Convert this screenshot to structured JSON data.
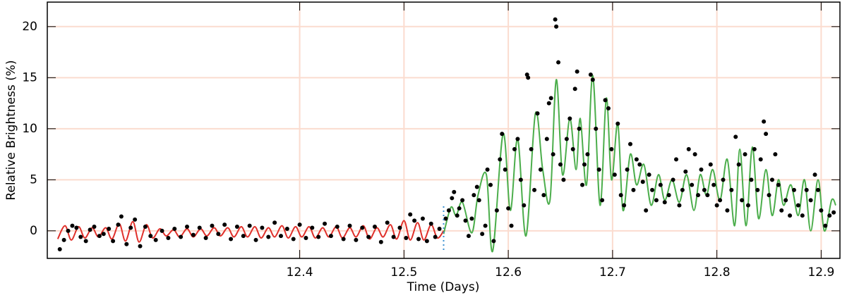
{
  "chart_data": {
    "type": "scatter",
    "xlabel": "Time (Days)",
    "ylabel": "Relative Brightness (%)",
    "xlim": [
      12.158,
      12.918
    ],
    "ylim": [
      -2.7,
      22.4
    ],
    "xticks": [
      12.4,
      12.5,
      12.6,
      12.7,
      12.8,
      12.9
    ],
    "yticks": [
      0,
      5,
      10,
      15,
      20
    ],
    "grid": true,
    "grid_color": "#fbdccf",
    "vline": {
      "x": 12.538,
      "color": "#3a8fd0"
    },
    "series": [
      {
        "type": "line",
        "color": "#e0302a",
        "x": [
          12.168,
          12.175,
          12.181,
          12.188,
          12.194,
          12.201,
          12.207,
          12.214,
          12.22,
          12.227,
          12.233,
          12.24,
          12.246,
          12.253,
          12.259,
          12.266,
          12.272,
          12.279,
          12.285,
          12.292,
          12.298,
          12.305,
          12.311,
          12.318,
          12.324,
          12.331,
          12.337,
          12.344,
          12.35,
          12.357,
          12.363,
          12.37,
          12.376,
          12.383,
          12.389,
          12.396,
          12.402,
          12.409,
          12.415,
          12.422,
          12.428,
          12.435,
          12.441,
          12.448,
          12.454,
          12.461,
          12.467,
          12.474,
          12.48,
          12.487,
          12.493,
          12.5,
          12.506,
          12.513,
          12.519,
          12.526,
          12.532,
          12.538
        ],
        "values": [
          -0.8,
          0.5,
          -0.9,
          0.4,
          -0.7,
          0.3,
          -0.6,
          0.3,
          -0.8,
          0.7,
          -1.0,
          0.9,
          -1.1,
          0.6,
          -0.7,
          0.2,
          -0.5,
          0.1,
          -0.6,
          0.2,
          -0.6,
          0.2,
          -0.5,
          0.3,
          -0.5,
          0.3,
          -0.6,
          0.4,
          -0.6,
          0.4,
          -0.7,
          0.3,
          -0.6,
          0.5,
          -0.7,
          0.4,
          -0.6,
          0.4,
          -0.7,
          0.3,
          -0.6,
          0.4,
          -0.7,
          0.3,
          -0.6,
          0.5,
          -0.8,
          0.3,
          -0.6,
          0.6,
          -0.8,
          1.0,
          -0.9,
          0.8,
          -0.9,
          0.6,
          -0.7,
          0.0
        ]
      },
      {
        "type": "line",
        "color": "#4cae4c",
        "x": [
          12.538,
          12.545,
          12.55,
          12.556,
          12.565,
          12.571,
          12.579,
          12.585,
          12.595,
          12.602,
          12.609,
          12.617,
          12.626,
          12.633,
          12.64,
          12.646,
          12.652,
          12.659,
          12.665,
          12.669,
          12.675,
          12.681,
          12.688,
          12.694,
          12.699,
          12.705,
          12.71,
          12.717,
          12.723,
          12.73,
          12.737,
          12.744,
          12.75,
          12.757,
          12.764,
          12.771,
          12.778,
          12.784,
          12.79,
          12.796,
          12.803,
          12.81,
          12.817,
          12.822,
          12.828,
          12.834,
          12.84,
          12.847,
          12.853,
          12.859,
          12.864,
          12.871,
          12.878,
          12.884,
          12.89,
          12.897,
          12.903,
          12.91,
          12.914
        ],
        "values": [
          -0.3,
          2.3,
          1.5,
          2.8,
          -0.2,
          3.5,
          5.5,
          -2.0,
          9.5,
          2.0,
          9.0,
          -0.5,
          11.5,
          6.0,
          3.0,
          14.8,
          5.5,
          11.0,
          6.0,
          11.0,
          4.5,
          15.2,
          2.5,
          13.0,
          5.0,
          10.5,
          2.0,
          7.5,
          4.5,
          6.5,
          2.5,
          5.5,
          3.0,
          5.0,
          2.8,
          5.5,
          2.0,
          5.5,
          3.5,
          6.0,
          3.0,
          7.0,
          0.5,
          8.0,
          0.5,
          8.2,
          1.2,
          6.0,
          1.5,
          5.0,
          2.5,
          4.5,
          1.5,
          5.0,
          0.0,
          5.0,
          0.0,
          3.0,
          2.5
        ]
      },
      {
        "type": "scatter",
        "color": "#000000",
        "x": [
          12.17,
          12.174,
          12.178,
          12.182,
          12.186,
          12.19,
          12.195,
          12.199,
          12.203,
          12.208,
          12.212,
          12.217,
          12.221,
          12.226,
          12.229,
          12.234,
          12.238,
          12.242,
          12.247,
          12.252,
          12.257,
          12.262,
          12.268,
          12.274,
          12.28,
          12.286,
          12.292,
          12.298,
          12.304,
          12.31,
          12.316,
          12.322,
          12.328,
          12.334,
          12.34,
          12.346,
          12.352,
          12.358,
          12.364,
          12.37,
          12.376,
          12.382,
          12.388,
          12.394,
          12.4,
          12.406,
          12.412,
          12.418,
          12.424,
          12.43,
          12.436,
          12.442,
          12.448,
          12.454,
          12.46,
          12.466,
          12.472,
          12.478,
          12.484,
          12.49,
          12.496,
          12.502,
          12.506,
          12.51,
          12.514,
          12.518,
          12.522,
          12.526,
          12.53,
          12.534,
          12.54,
          12.543,
          12.546,
          12.548,
          12.551,
          12.553,
          12.556,
          12.559,
          12.562,
          12.565,
          12.567,
          12.57,
          12.572,
          12.575,
          12.578,
          12.58,
          12.583,
          12.586,
          12.589,
          12.592,
          12.594,
          12.597,
          12.6,
          12.603,
          12.606,
          12.609,
          12.612,
          12.615,
          12.618,
          12.619,
          12.622,
          12.625,
          12.628,
          12.631,
          12.634,
          12.637,
          12.639,
          12.641,
          12.643,
          12.645,
          12.646,
          12.648,
          12.65,
          12.653,
          12.656,
          12.659,
          12.662,
          12.664,
          12.666,
          12.668,
          12.671,
          12.673,
          12.676,
          12.679,
          12.681,
          12.684,
          12.687,
          12.69,
          12.693,
          12.696,
          12.699,
          12.702,
          12.705,
          12.708,
          12.711,
          12.714,
          12.717,
          12.72,
          12.723,
          12.726,
          12.729,
          12.732,
          12.735,
          12.738,
          12.742,
          12.746,
          12.75,
          12.754,
          12.758,
          12.761,
          12.764,
          12.767,
          12.77,
          12.773,
          12.776,
          12.779,
          12.782,
          12.785,
          12.788,
          12.791,
          12.794,
          12.797,
          12.8,
          12.803,
          12.806,
          12.81,
          12.814,
          12.818,
          12.821,
          12.824,
          12.827,
          12.83,
          12.833,
          12.836,
          12.839,
          12.842,
          12.845,
          12.847,
          12.85,
          12.853,
          12.856,
          12.859,
          12.862,
          12.866,
          12.87,
          12.874,
          12.878,
          12.882,
          12.886,
          12.89,
          12.894,
          12.897,
          12.9,
          12.904,
          12.908,
          12.912
        ],
        "values": [
          -1.8,
          -0.9,
          0.0,
          0.5,
          0.3,
          -0.6,
          -1.0,
          0.1,
          0.4,
          -0.5,
          -0.3,
          0.2,
          -1.0,
          0.6,
          1.4,
          -1.3,
          0.3,
          1.1,
          -1.5,
          0.4,
          -0.5,
          -0.9,
          0.0,
          -0.7,
          0.2,
          -0.6,
          0.4,
          -0.4,
          0.3,
          -0.7,
          0.5,
          -0.3,
          0.6,
          -0.8,
          0.4,
          -0.5,
          0.5,
          -0.9,
          0.3,
          -0.6,
          0.8,
          -0.5,
          0.2,
          -0.8,
          0.6,
          -0.7,
          0.3,
          -0.6,
          0.7,
          -0.5,
          0.4,
          -0.8,
          0.5,
          -0.9,
          0.3,
          -0.6,
          0.4,
          -1.1,
          0.8,
          -0.6,
          0.3,
          -0.7,
          1.6,
          1.0,
          -0.8,
          1.2,
          -1.0,
          0.7,
          -0.6,
          0.2,
          1.2,
          2.0,
          3.2,
          3.8,
          1.5,
          2.2,
          3.0,
          1.0,
          -0.5,
          1.2,
          3.5,
          4.3,
          3.0,
          -0.3,
          0.5,
          6.0,
          4.5,
          -1.0,
          2.0,
          7.0,
          9.5,
          6.0,
          2.2,
          0.5,
          8.0,
          9.0,
          5.0,
          2.5,
          15.3,
          15.0,
          8.0,
          4.0,
          11.5,
          6.0,
          3.5,
          9.0,
          12.5,
          13.0,
          7.5,
          20.7,
          20.0,
          16.5,
          6.5,
          5.0,
          9.0,
          11.0,
          8.0,
          13.9,
          15.6,
          10.0,
          4.5,
          6.5,
          7.5,
          15.3,
          14.8,
          10.0,
          6.0,
          3.0,
          12.8,
          12.0,
          8.0,
          5.5,
          10.5,
          3.5,
          2.5,
          6.0,
          8.5,
          4.0,
          7.0,
          6.5,
          4.8,
          2.0,
          5.5,
          4.0,
          3.0,
          4.5,
          2.8,
          3.5,
          5.0,
          7.0,
          2.5,
          4.0,
          5.8,
          8.0,
          4.5,
          7.5,
          3.5,
          6.0,
          4.0,
          3.5,
          6.5,
          4.5,
          2.5,
          3.0,
          5.0,
          2.0,
          4.0,
          9.2,
          6.5,
          3.0,
          7.5,
          2.5,
          5.0,
          8.0,
          4.0,
          7.0,
          10.7,
          9.5,
          3.5,
          5.0,
          7.5,
          4.5,
          2.0,
          3.0,
          1.5,
          4.0,
          2.5,
          1.5,
          4.0,
          3.0,
          5.5,
          4.0,
          2.0,
          0.5,
          1.5,
          1.8
        ]
      }
    ]
  }
}
